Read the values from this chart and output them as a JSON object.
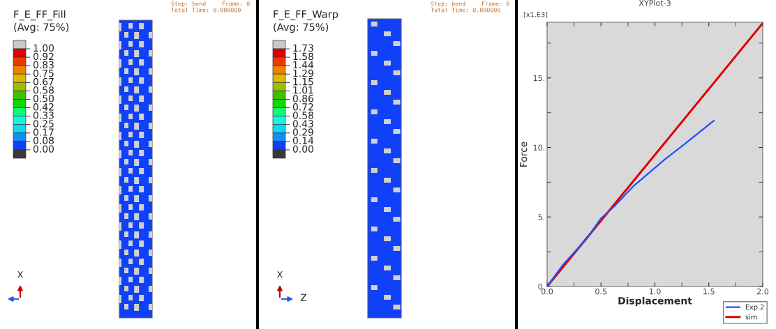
{
  "chart_data": [
    {
      "type": "other",
      "title": "F_E_FF_Fill",
      "subtitle": "(Avg: 75%)",
      "colors": [
        "#c8c8c8",
        "#e00000",
        "#e83a00",
        "#f08000",
        "#e0b800",
        "#98c000",
        "#40c000",
        "#10d800",
        "#10f878",
        "#10f8e0",
        "#10d8f8",
        "#1090f8",
        "#1040f8",
        "#383838"
      ],
      "annotations": [
        "1.00",
        "0.92",
        "0.83",
        "0.75",
        "0.67",
        "0.58",
        "0.50",
        "0.42",
        "0.33",
        "0.25",
        "0.17",
        "0.08",
        "0.00",
        "Step: bend",
        "Frame: 0",
        "Total Time: 0.000000",
        "X"
      ]
    },
    {
      "type": "other",
      "title": "F_E_FF_Warp",
      "subtitle": "(Avg: 75%)",
      "colors": [
        "#c8c8c8",
        "#e00000",
        "#e83a00",
        "#f08000",
        "#e0b800",
        "#98c000",
        "#40c000",
        "#10d800",
        "#10f878",
        "#10f8e0",
        "#10d8f8",
        "#1090f8",
        "#1040f8",
        "#383838"
      ],
      "annotations": [
        "1.73",
        "1.58",
        "1.44",
        "1.29",
        "1.15",
        "1.01",
        "0.86",
        "0.72",
        "0.58",
        "0.43",
        "0.29",
        "0.14",
        "0.00",
        "Step: bend",
        "Frame: 0",
        "Total Time: 0.000000",
        "X",
        "Z"
      ]
    },
    {
      "type": "line",
      "title": "XYPlot-3",
      "xlabel": "Displacement",
      "ylabel": "Force",
      "annotations": [
        "[x1.E3]"
      ],
      "xlim": [
        0,
        2.0
      ],
      "ylim": [
        0,
        19.0
      ],
      "xticks": [
        {
          "value": 0,
          "label": "0.0"
        },
        {
          "value": 0.5,
          "label": "0.5"
        },
        {
          "value": 1.0,
          "label": "1.0"
        },
        {
          "value": 1.5,
          "label": "1.5"
        },
        {
          "value": 2.0,
          "label": "2.0"
        }
      ],
      "yticks": [
        {
          "value": 0,
          "label": "0."
        },
        {
          "value": 5,
          "label": "5."
        },
        {
          "value": 10,
          "label": "10."
        },
        {
          "value": 15,
          "label": "15."
        }
      ],
      "grid": false,
      "legend": "bottom right",
      "series": [
        {
          "name": "Exp 2",
          "color": "#1f4fff",
          "x": [
            0,
            0.145,
            0.36,
            0.5,
            0.62,
            0.8,
            1.094,
            1.27,
            1.547
          ],
          "values": [
            0,
            1.54,
            3.37,
            4.9,
            5.74,
            7.21,
            9.16,
            10.21,
            11.93
          ]
        },
        {
          "name": "sim",
          "color": "#e00000",
          "x": [
            0,
            2.0
          ],
          "values": [
            0,
            18.94
          ]
        }
      ]
    }
  ]
}
